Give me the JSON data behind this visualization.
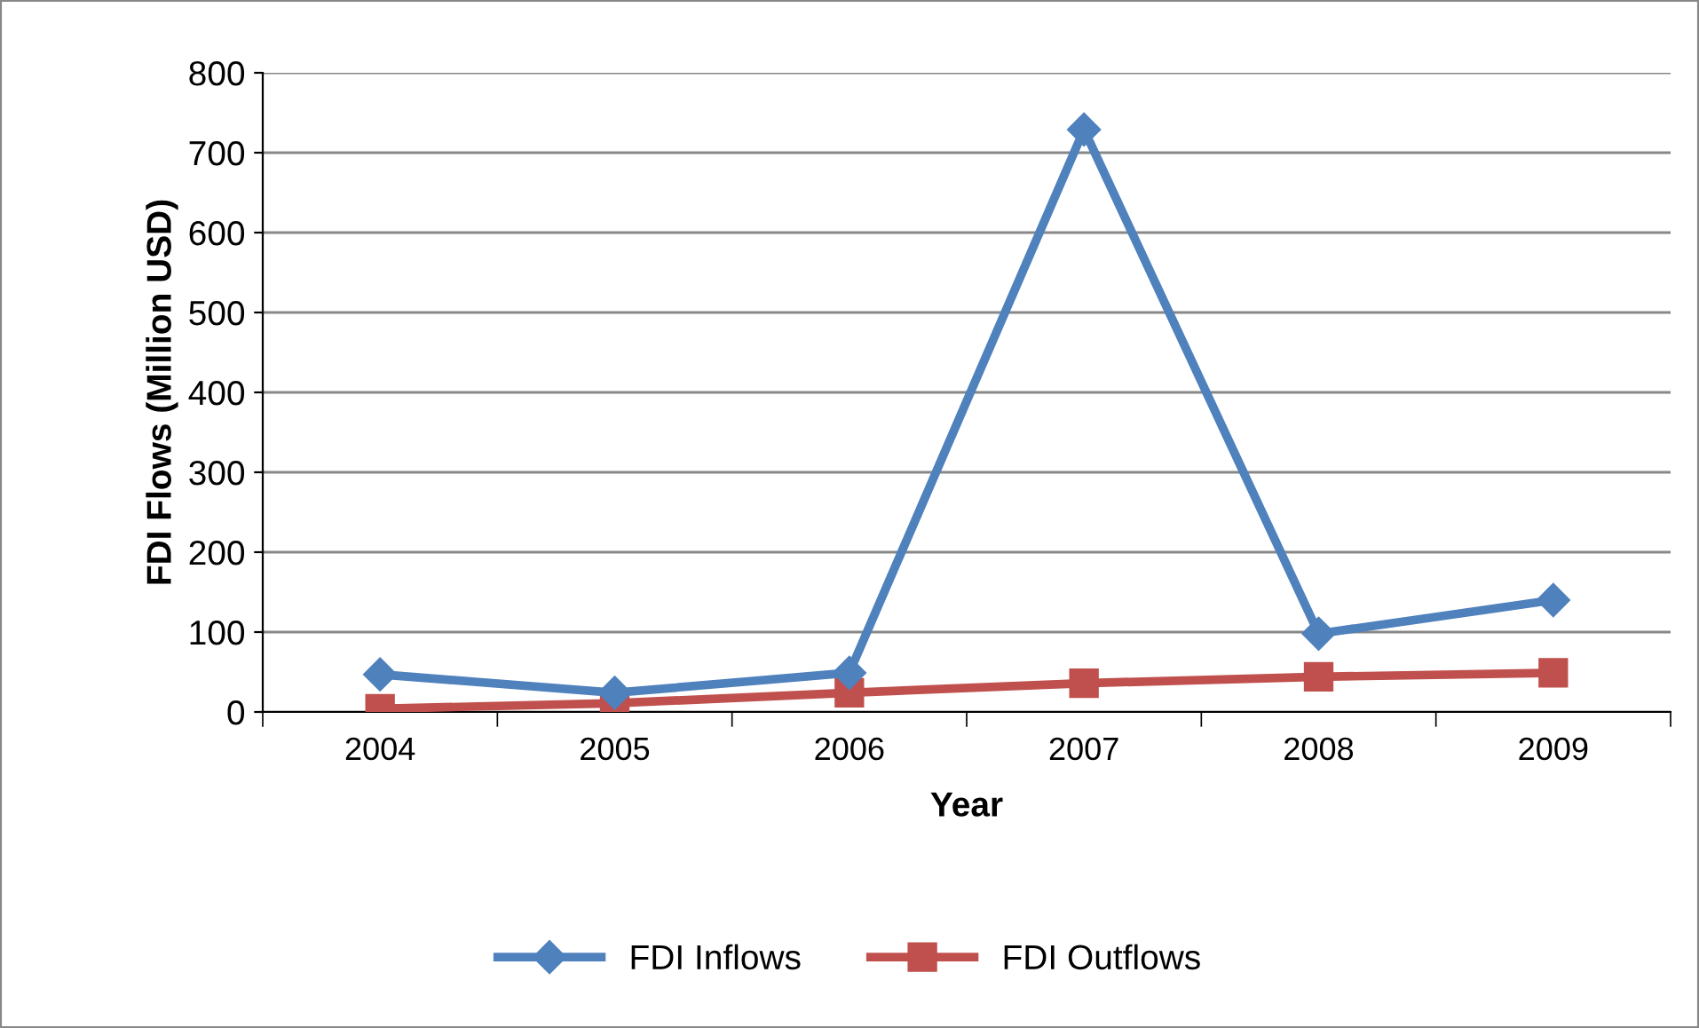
{
  "chart_data": {
    "type": "line",
    "xlabel": "Year",
    "ylabel": "FDI Flows (Million USD)",
    "categories": [
      "2004",
      "2005",
      "2006",
      "2007",
      "2008",
      "2009"
    ],
    "series": [
      {
        "name": "FDI Inflows",
        "color": "#4f81bd",
        "marker": "diamond",
        "values": [
          47,
          24,
          49,
          729,
          98,
          140
        ]
      },
      {
        "name": "FDI Outflows",
        "color": "#c0504d",
        "marker": "square",
        "values": [
          4,
          11,
          24,
          36,
          44,
          49
        ]
      }
    ],
    "ylim": [
      0,
      800
    ],
    "yticks": [
      0,
      100,
      200,
      300,
      400,
      500,
      600,
      700,
      800
    ],
    "grid": "y",
    "legend": "bottom",
    "line_style": "solid"
  }
}
